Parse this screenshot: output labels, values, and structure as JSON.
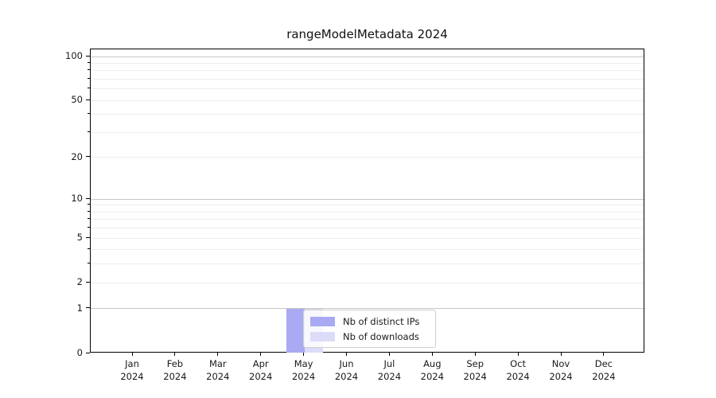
{
  "page": {
    "background": "#ffffff"
  },
  "chart_data": {
    "type": "bar",
    "title": "rangeModelMetadata 2024",
    "x": {
      "months": [
        "Jan",
        "Feb",
        "Mar",
        "Apr",
        "May",
        "Jun",
        "Jul",
        "Aug",
        "Sep",
        "Oct",
        "Nov",
        "Dec"
      ],
      "year": "2024"
    },
    "series": [
      {
        "name": "Nb of distinct IPs",
        "color": "#a9aaf3",
        "values": [
          0,
          0,
          0,
          0,
          1,
          0,
          0,
          0,
          0,
          0,
          0,
          0
        ]
      },
      {
        "name": "Nb of downloads",
        "color": "#dcdcf8",
        "values": [
          0,
          0,
          0,
          0,
          1,
          0,
          0,
          0,
          0,
          0,
          0,
          0
        ]
      }
    ],
    "y_axis": {
      "scale": "log1p",
      "ylim": [
        0,
        100
      ],
      "labeled_ticks": [
        0,
        1,
        2,
        5,
        10,
        20,
        50,
        100
      ],
      "minor_ticks": [
        3,
        4,
        6,
        7,
        8,
        9,
        30,
        40,
        60,
        70,
        80,
        90
      ],
      "major_gridlines": [
        1,
        10,
        100
      ],
      "minor_gridlines": [
        2,
        3,
        4,
        5,
        6,
        7,
        8,
        9,
        20,
        30,
        40,
        50,
        60,
        70,
        80,
        90
      ]
    },
    "legend": {
      "entries": [
        "Nb of distinct IPs",
        "Nb of downloads"
      ],
      "location": "lower center"
    },
    "grid": true
  },
  "colors": {
    "axis": "#000000",
    "text": "#191919",
    "major_grid": "#c6c6c6",
    "minor_grid": "#ededed",
    "legend_border": "#cfcfcf",
    "bar_distinct_ips": "#a9aaf3",
    "bar_downloads": "#dcdcf8"
  }
}
